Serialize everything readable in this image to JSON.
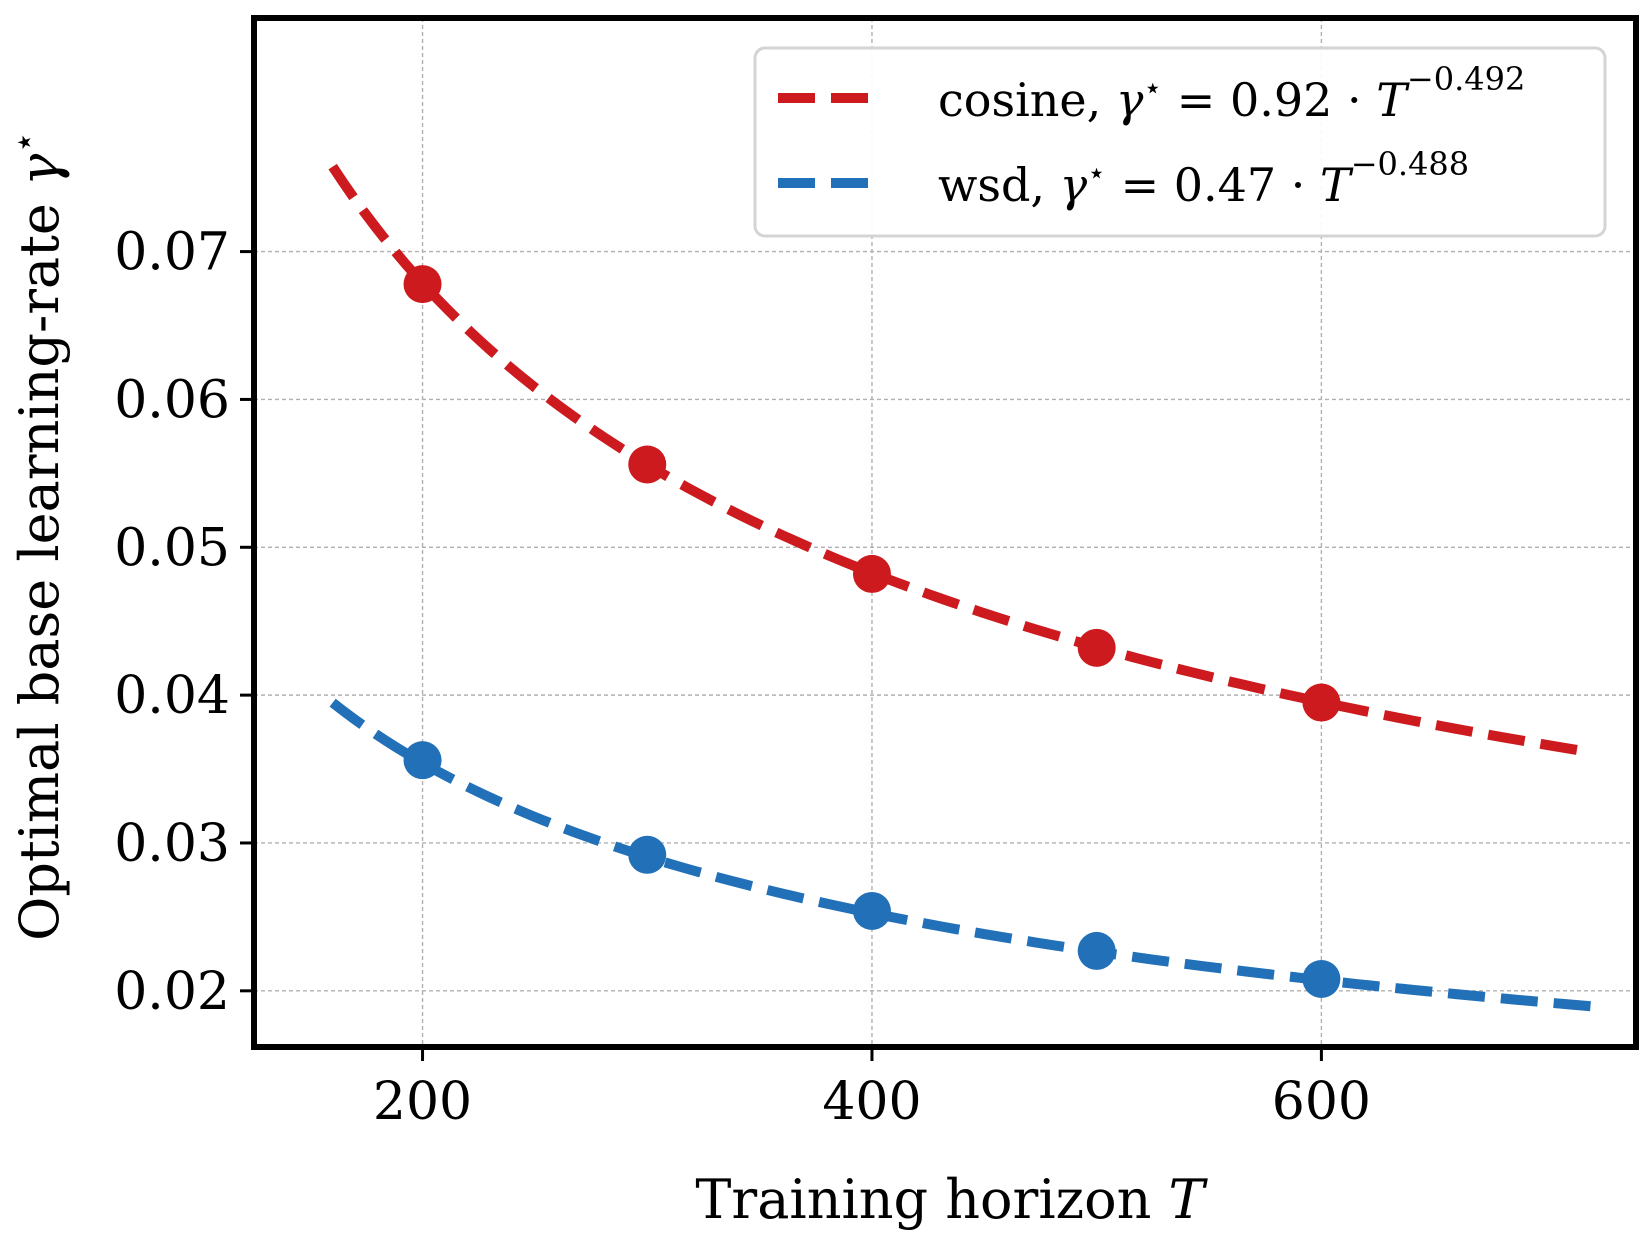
{
  "chart_data": {
    "type": "line",
    "title": "",
    "xlabel": "Training horizon ",
    "xlabel_var": "T",
    "ylabel": "Optimal base learning-rate ",
    "ylabel_var": "γ",
    "ylabel_sup": "⋆",
    "xlim": [
      125,
      740
    ],
    "ylim": [
      0.0162,
      0.0858
    ],
    "xticks": [
      200,
      400,
      600
    ],
    "xtick_labels": [
      "200",
      "400",
      "600"
    ],
    "yticks": [
      0.02,
      0.03,
      0.04,
      0.05,
      0.06,
      0.07
    ],
    "ytick_labels": [
      "0.02",
      "0.03",
      "0.04",
      "0.05",
      "0.06",
      "0.07"
    ],
    "grid": true,
    "legend_position": "top-right",
    "series": [
      {
        "key": "cosine",
        "color": "#cc1a1f",
        "legend": {
          "name": "cosine, ",
          "var": "γ",
          "sup": "⋆",
          "eq": " = 0.92 · ",
          "base": "T",
          "exp": "−0.492"
        },
        "fit": {
          "coef": 0.92,
          "exponent": -0.492,
          "x_range": [
            160,
            720
          ]
        },
        "points": {
          "x": [
            200,
            300,
            400,
            500,
            600
          ],
          "y": [
            0.0678,
            0.0556,
            0.0482,
            0.0432,
            0.0395
          ]
        }
      },
      {
        "key": "wsd",
        "color": "#2270b8",
        "legend": {
          "name": "wsd, ",
          "var": "γ",
          "sup": "⋆",
          "eq": " = 0.47 · ",
          "base": "T",
          "exp": "−0.488"
        },
        "fit": {
          "coef": 0.47,
          "exponent": -0.488,
          "x_range": [
            160,
            720
          ]
        },
        "points": {
          "x": [
            200,
            300,
            400,
            500,
            600
          ],
          "y": [
            0.0356,
            0.0292,
            0.0254,
            0.0227,
            0.0208
          ]
        }
      }
    ]
  }
}
